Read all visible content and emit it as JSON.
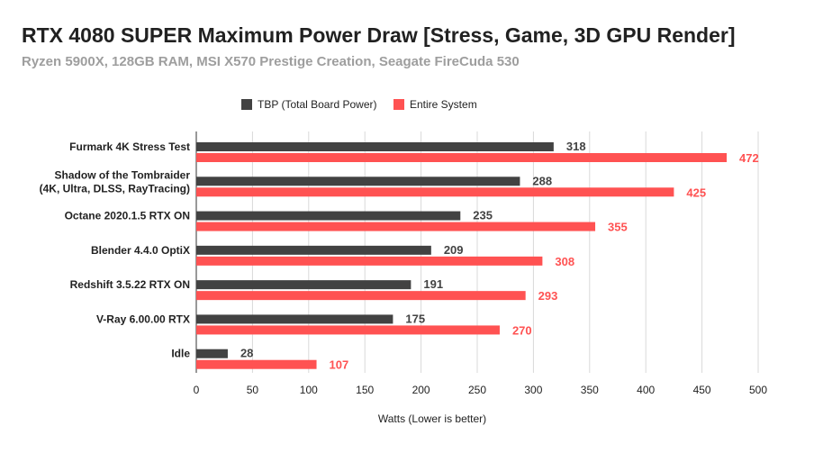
{
  "chart_data": {
    "type": "bar",
    "orientation": "horizontal",
    "title": "RTX 4080 SUPER Maximum Power Draw [Stress, Game, 3D GPU Render]",
    "subtitle": "Ryzen 5900X, 128GB RAM, MSI X570 Prestige Creation, Seagate FireCuda 530",
    "xlabel": "Watts (Lower is better)",
    "ylabel": "",
    "xlim": [
      0,
      500
    ],
    "xticks": [
      0,
      50,
      100,
      150,
      200,
      250,
      300,
      350,
      400,
      450,
      500
    ],
    "grid": true,
    "legend_position": "top",
    "categories": [
      [
        "Furmark 4K Stress Test"
      ],
      [
        "Shadow of the Tombraider",
        "(4K, Ultra, DLSS, RayTracing)"
      ],
      [
        "Octane 2020.1.5 RTX ON"
      ],
      [
        "Blender 4.4.0 OptiX"
      ],
      [
        "Redshift 3.5.22 RTX ON"
      ],
      [
        "V-Ray 6.00.00 RTX"
      ],
      [
        "Idle"
      ]
    ],
    "series": [
      {
        "name": "TBP (Total Board Power)",
        "color": "#424242",
        "label_color": "#424242",
        "values": [
          318,
          288,
          235,
          209,
          191,
          175,
          28
        ]
      },
      {
        "name": "Entire System",
        "color": "#ff5252",
        "label_color": "#ff5252",
        "values": [
          472,
          425,
          355,
          308,
          293,
          270,
          107
        ]
      }
    ]
  }
}
